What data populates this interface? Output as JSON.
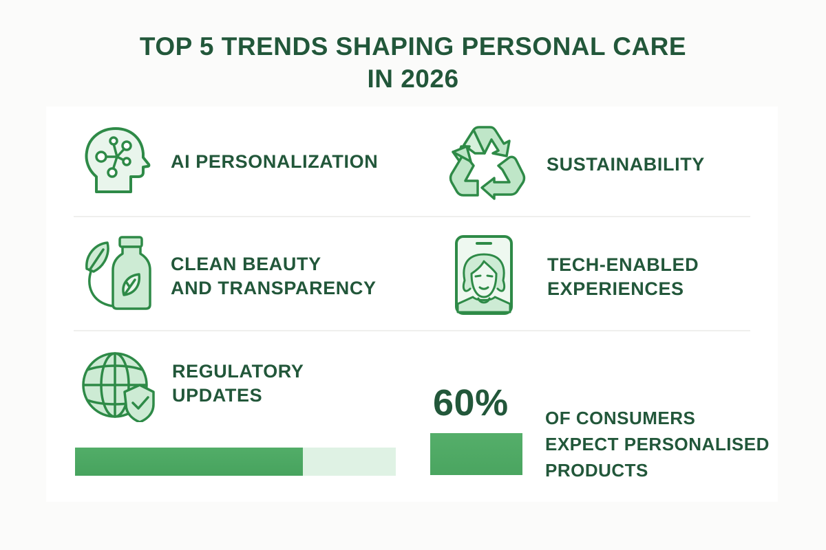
{
  "title": {
    "line1": "TOP 5 TRENDS SHAPING PERSONAL CARE",
    "line2": "IN 2026"
  },
  "colors": {
    "text": "#22573a",
    "icon_stroke": "#2e8a47",
    "icon_fill": "#cfeed6",
    "bar_fill": "#4ea865",
    "bar_track": "#dff2e4",
    "background": "#fbfbfa",
    "card": "#ffffff"
  },
  "trends": [
    {
      "icon": "head-network-icon",
      "lines": [
        "AI PERSONALIZATION"
      ]
    },
    {
      "icon": "recycle-icon",
      "lines": [
        "SUSTAINABILITY"
      ]
    },
    {
      "icon": "bottle-leaf-icon",
      "lines": [
        "CLEAN BEAUTY",
        "AND TRANSPARENCY"
      ]
    },
    {
      "icon": "phone-face-icon",
      "lines": [
        "TECH-ENABLED",
        "EXPERIENCES"
      ]
    },
    {
      "icon": "globe-shield-icon",
      "lines": [
        "REGULATORY",
        "UPDATES"
      ]
    }
  ],
  "progress_bar": {
    "percent": 71
  },
  "stat": {
    "value": "60%",
    "lines": [
      "OF CONSUMERS",
      "EXPECT PERSONALISED",
      "PRODUCTS"
    ]
  }
}
